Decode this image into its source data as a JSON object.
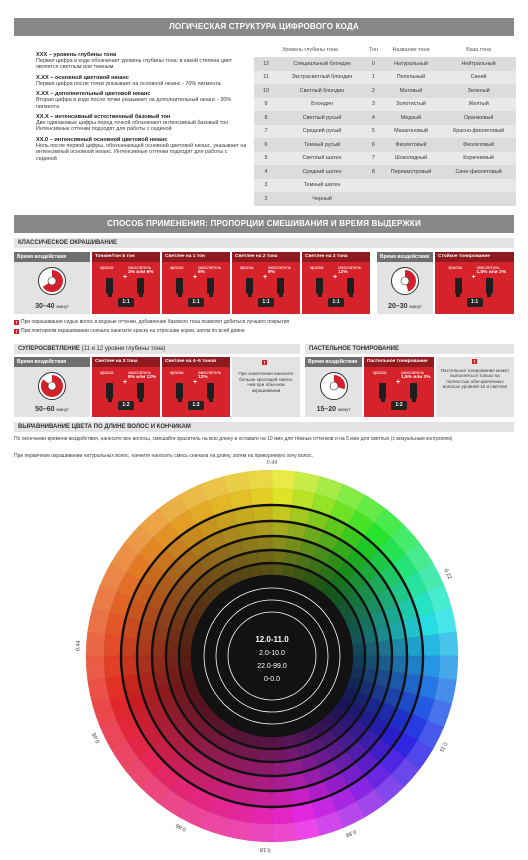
{
  "header1": "ЛОГИЧЕСКАЯ СТРУКТУРА ЦИФРОВОГО КОДА",
  "code_legend": [
    {
      "title": "XXX – уровень глубины тона",
      "text": "Первая цифра в коде обозначает уровень глубины тона: в какой степени цвет является светлым или темным"
    },
    {
      "title": "X.XX – основной цветовой нюанс",
      "text": "Первая цифра после точки указывает на основной нюанс - 70% пигмента"
    },
    {
      "title": "X.XX – дополнительный цветовой нюанс",
      "text": "Вторая цифра в коде после точки указывает на дополнительный нюанс - 30% пигмента"
    },
    {
      "title": "XX.X – интенсивный естественный базовый тон",
      "text": "Две одинаковые цифры перед точкой обозначают интенсивный базовый тон. Интенсивные оттенки подходят для работы с сединой"
    },
    {
      "title": "XX.0 – интенсивный основной цветовой нюанс",
      "text": "Ноль после первой цифры, обозначающей основной цветовой нюанс, указывает на интенсивный основной нюанс. Интенсивные оттенки подходят для работы с сединой"
    }
  ],
  "tone_table": {
    "columns": [
      "Уровень глубины тона",
      "Тон",
      "Название тона",
      "База тона"
    ],
    "rows": [
      [
        "12",
        "Специальный блондин",
        "0",
        "Натуральный",
        "Нейтральный"
      ],
      [
        "11",
        "Экстрасветлый блондин",
        "1",
        "Пепельный",
        "Синий"
      ],
      [
        "10",
        "Светлый блондин",
        "2",
        "Матовый",
        "Зеленый"
      ],
      [
        "9",
        "Блондин",
        "3",
        "Золотистый",
        "Желтый"
      ],
      [
        "8",
        "Светлый русый",
        "4",
        "Медный",
        "Оранжевый"
      ],
      [
        "7",
        "Средний русый",
        "5",
        "Махагоновый",
        "Красно-фиолетовый"
      ],
      [
        "6",
        "Темный русый",
        "6",
        "Фиолетовый",
        "Фиолетовый"
      ],
      [
        "5",
        "Светлый шатен",
        "7",
        "Шоколадный",
        "Коричневый"
      ],
      [
        "4",
        "Средний шатен",
        "8",
        "Перламутровый",
        "Сине-фиолетовый"
      ],
      [
        "3",
        "Темный шатен"
      ],
      [
        "2",
        "Черный"
      ]
    ]
  },
  "header2": "СПОСОБ ПРИМЕНЕНИЯ: ПРОПОРЦИИ СМЕШИВАНИЯ И ВРЕМЯ ВЫДЕРЖКИ",
  "classic": {
    "title": "КЛАССИЧЕСКОЕ ОКРАШИВАНИЕ",
    "time_label": "Время воздействия",
    "time": "30–40",
    "unit": "минут",
    "cards": [
      {
        "title": "Тонкие/тон в тон",
        "dye": "краска",
        "oxidant": "окислитель",
        "percent": "3% или 6%",
        "ratio": "1:1"
      },
      {
        "title": "Светлее на 1 тон",
        "dye": "краска",
        "oxidant": "окислитель",
        "percent": "6%",
        "ratio": "1:1"
      },
      {
        "title": "Светлее на 2 тона",
        "dye": "краска",
        "oxidant": "окислитель",
        "percent": "9%",
        "ratio": "1:1"
      },
      {
        "title": "Светлее на 3 тона",
        "dye": "краска",
        "oxidant": "окислитель",
        "percent": "12%",
        "ratio": "1:1"
      }
    ],
    "toning": {
      "time_label": "Время воздействия",
      "time": "20–30",
      "unit": "минут",
      "card": {
        "title": "Стойкое тонирование",
        "dye": "краска",
        "oxidant": "окислитель",
        "percent": "1,5% или 3%",
        "ratio": "1:1"
      }
    }
  },
  "notes": [
    "При окрашивании седых волос в модные оттенки, добавление базового тона позволит добиться лучшего покрытия",
    "При повторном окрашивании сначала нанесите краску на отросшие корни, затем по всей длине"
  ],
  "superlightening": {
    "title": "СУПЕРОСВЕТЛЕНИЕ",
    "subtitle": "(11 и 12 уровни глубины тона)",
    "time_label": "Время воздействия",
    "time": "50–60",
    "unit": "минут",
    "cards": [
      {
        "title": "Светлее на 3 тона",
        "dye": "краска",
        "oxidant": "окислитель",
        "percent": "9% или 12%",
        "ratio": "1:2"
      },
      {
        "title": "Светлее на 4–5 тонов",
        "dye": "краска",
        "oxidant": "окислитель",
        "percent": "12%",
        "ratio": "1:2"
      }
    ],
    "note": "При осветлении наносите больше красящей смеси, чем при обычном окрашивании"
  },
  "pastel": {
    "title": "ПАСТЕЛЬНОЕ ТОНИРОВАНИЕ",
    "time_label": "Время воздействия",
    "time": "15–20",
    "unit": "минут",
    "card": {
      "title": "Пастельное тонирование",
      "dye": "краска",
      "oxidant": "окислитель",
      "percent": "1,5% или 3%",
      "ratio": "1:2"
    },
    "note": "Пастельное тонирование может выполняться только на полностью обесцвеченных волосах уровней 10 и светлее"
  },
  "alignment": {
    "title": "ВЫРАВНИВАНИЕ ЦВЕТА ПО ДЛИНЕ ВОЛОС И КОНЧИКАМ",
    "paragraphs": [
      "По окончании времени воздействия, нанесите все волосы, смешайте краситель на всю длину и оставьте на 10 мин для тёмных оттенков и на 5 мин для светлых (с визуальным контролем)",
      "При первичном окрашивании натуральных волос, начните наносить смесь сначала на длину, затем на прикорневую зону волос."
    ]
  },
  "wheel": {
    "center_labels": [
      "12.0-11.0",
      "2.0-10.0",
      "22.0-99.0",
      "0-0.0"
    ],
    "outer_labels": [
      "0.33",
      "0.22",
      "0.11",
      "0.89",
      "0.18",
      "0.66",
      "0.45",
      "0.44"
    ]
  }
}
